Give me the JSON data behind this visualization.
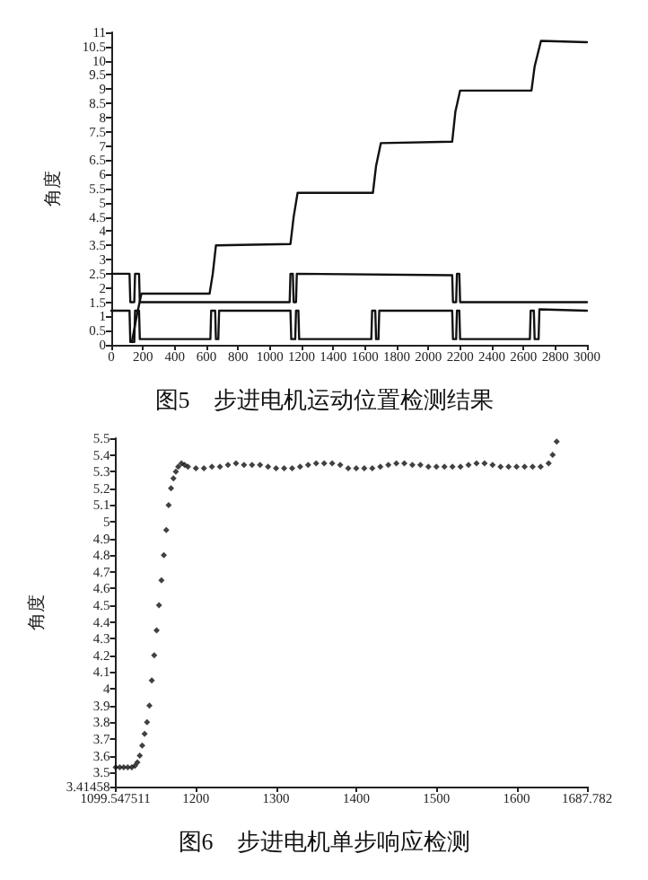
{
  "chart_data": [
    {
      "type": "line",
      "title": "图5　步进电机运动位置检测结果",
      "ylabel": "角度",
      "xlim": [
        0,
        3000
      ],
      "xticks": [
        0,
        200,
        400,
        600,
        800,
        1000,
        1200,
        1400,
        1600,
        1800,
        2000,
        2200,
        2400,
        2600,
        2800,
        3000
      ],
      "ylim": [
        0,
        11
      ],
      "yticks": [
        0,
        0.5,
        1,
        1.5,
        2,
        2.5,
        3,
        3.5,
        4,
        4.5,
        5,
        5.5,
        6,
        6.5,
        7,
        7.5,
        8,
        8.5,
        9,
        9.5,
        10,
        10.5,
        11
      ],
      "grid": false,
      "marker": "none",
      "line_style": "solid",
      "series": [
        {
          "color": "#111111",
          "x": [
            130,
            160,
            190,
            620,
            640,
            660,
            1130,
            1150,
            1175,
            1650,
            1670,
            1700,
            2150,
            2170,
            2200,
            2650,
            2670,
            2710,
            3000
          ],
          "values": [
            0.1,
            1,
            1.8,
            1.8,
            2.5,
            3.5,
            3.55,
            4.5,
            5.35,
            5.35,
            6.3,
            7.1,
            7.15,
            8.2,
            8.95,
            8.95,
            9.8,
            10.7,
            10.65
          ]
        },
        {
          "color": "#111111",
          "x": [
            0,
            115,
            120,
            145,
            150,
            175,
            180,
            1125,
            1130,
            1145,
            1150,
            1165,
            1170,
            2150,
            2155,
            2175,
            2180,
            2195,
            2200,
            3000
          ],
          "values": [
            2.5,
            2.5,
            1.5,
            1.5,
            2.5,
            2.5,
            1.5,
            1.5,
            2.5,
            2.5,
            1.5,
            1.5,
            2.5,
            2.45,
            1.5,
            1.5,
            2.5,
            2.5,
            1.5,
            1.5
          ]
        },
        {
          "color": "#111111",
          "x": [
            0,
            115,
            120,
            145,
            150,
            175,
            180,
            625,
            630,
            655,
            660,
            675,
            680,
            1130,
            1135,
            1160,
            1165,
            1180,
            1185,
            1640,
            1645,
            1665,
            1670,
            1685,
            1690,
            2150,
            2155,
            2175,
            2180,
            2195,
            2200,
            2640,
            2645,
            2665,
            2670,
            2695,
            2700,
            3000
          ],
          "values": [
            1.2,
            1.2,
            0.1,
            0.1,
            1.2,
            1.2,
            0.2,
            0.2,
            1.2,
            1.2,
            0.2,
            0.2,
            1.2,
            1.2,
            0.2,
            0.2,
            1.2,
            1.2,
            0.2,
            0.2,
            1.2,
            1.2,
            0.2,
            0.2,
            1.2,
            1.2,
            0.2,
            0.2,
            1.2,
            1.2,
            0.2,
            0.2,
            1.2,
            1.2,
            0.2,
            0.2,
            1.25,
            1.2
          ]
        }
      ]
    },
    {
      "type": "scatter",
      "title": "图6　步进电机单步响应检测",
      "ylabel": "角度",
      "xlim": [
        1099.547511,
        1687.782
      ],
      "xticks": [
        1099.547511,
        1200,
        1300,
        1400,
        1500,
        1600,
        1687.782
      ],
      "ylim": [
        3.41458,
        5.5
      ],
      "yticks": [
        3.41458,
        3.5,
        3.6,
        3.7,
        3.8,
        3.9,
        4,
        4.1,
        4.2,
        4.3,
        4.4,
        4.5,
        4.6,
        4.7,
        4.8,
        4.9,
        5,
        5.1,
        5.2,
        5.3,
        5.4,
        5.5
      ],
      "grid": false,
      "marker": "diamond",
      "series": [
        {
          "color": "#111111",
          "x": [
            1100,
            1105,
            1110,
            1115,
            1120,
            1124,
            1127,
            1130,
            1133,
            1136,
            1139,
            1142,
            1145,
            1148,
            1151,
            1154,
            1157,
            1160,
            1163,
            1166,
            1169,
            1172,
            1175,
            1178,
            1182,
            1186,
            1190,
            1200,
            1210,
            1220,
            1230,
            1240,
            1250,
            1260,
            1270,
            1280,
            1290,
            1300,
            1310,
            1320,
            1330,
            1340,
            1350,
            1360,
            1370,
            1380,
            1390,
            1400,
            1410,
            1420,
            1430,
            1440,
            1450,
            1460,
            1470,
            1480,
            1490,
            1500,
            1510,
            1520,
            1530,
            1540,
            1550,
            1560,
            1570,
            1580,
            1590,
            1600,
            1610,
            1620,
            1630,
            1640,
            1645,
            1650
          ],
          "values": [
            3.53,
            3.53,
            3.53,
            3.53,
            3.53,
            3.54,
            3.56,
            3.6,
            3.66,
            3.73,
            3.8,
            3.9,
            4.05,
            4.2,
            4.35,
            4.5,
            4.65,
            4.8,
            4.95,
            5.1,
            5.2,
            5.26,
            5.3,
            5.33,
            5.35,
            5.34,
            5.33,
            5.32,
            5.32,
            5.33,
            5.33,
            5.34,
            5.35,
            5.34,
            5.34,
            5.34,
            5.33,
            5.32,
            5.32,
            5.32,
            5.33,
            5.34,
            5.35,
            5.35,
            5.35,
            5.34,
            5.32,
            5.32,
            5.32,
            5.32,
            5.33,
            5.34,
            5.35,
            5.35,
            5.34,
            5.34,
            5.33,
            5.33,
            5.33,
            5.33,
            5.33,
            5.34,
            5.35,
            5.35,
            5.34,
            5.33,
            5.33,
            5.33,
            5.33,
            5.33,
            5.33,
            5.35,
            5.4,
            5.48
          ]
        }
      ]
    }
  ]
}
